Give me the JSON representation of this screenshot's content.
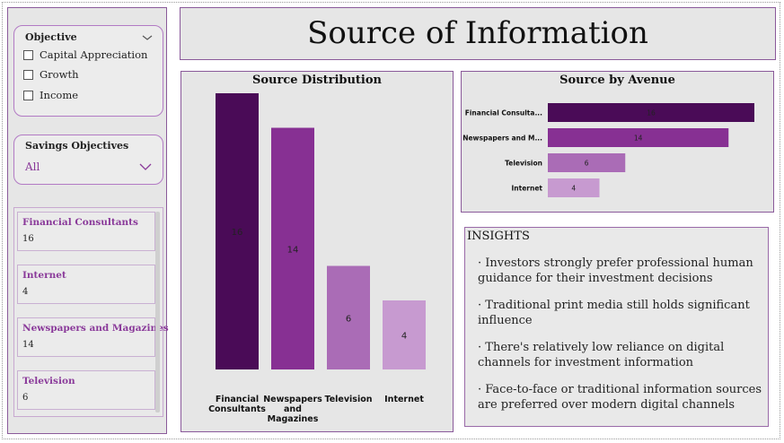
{
  "page": {
    "title": "Source of Information"
  },
  "objective_slicer": {
    "title": "Objective",
    "options": [
      "Capital Appreciation",
      "Growth",
      "Income"
    ]
  },
  "savings_slicer": {
    "title": "Savings Objectives",
    "value": "All"
  },
  "cards": [
    {
      "label": "Financial Consultants",
      "value": "16"
    },
    {
      "label": "Internet",
      "value": "4"
    },
    {
      "label": "Newspapers and Magazines",
      "value": "14"
    },
    {
      "label": "Television",
      "value": "6"
    }
  ],
  "insights": {
    "title": "INSIGHTS",
    "bullet": "·",
    "items": [
      "Investors strongly prefer professional human guidance for their investment decisions",
      "Traditional print media still holds significant influence",
      "There's relatively low reliance on digital channels for investment information",
      "Face-to-face or traditional information sources are preferred over modern digital channels"
    ]
  },
  "colors": {
    "financial": "#4a0b57",
    "newspapers": "#873093",
    "television": "#aa6cb6",
    "internet": "#c79ad0",
    "accent": "#8a3a9a"
  },
  "chart_data": [
    {
      "type": "bar",
      "title": "Source Distribution",
      "categories": [
        "Financial Consultants",
        "Newspapers and Magazines",
        "Television",
        "Internet"
      ],
      "values": [
        16,
        14,
        6,
        4
      ],
      "ylim": [
        0,
        16
      ],
      "grid": false,
      "legend": "none"
    },
    {
      "type": "bar",
      "orientation": "horizontal",
      "title": "Source by Avenue",
      "categories": [
        "Financial Consulta...",
        "Newspapers and M...",
        "Television",
        "Internet"
      ],
      "values": [
        16,
        14,
        6,
        4
      ],
      "xlim": [
        0,
        16
      ],
      "grid": false,
      "legend": "none"
    }
  ]
}
